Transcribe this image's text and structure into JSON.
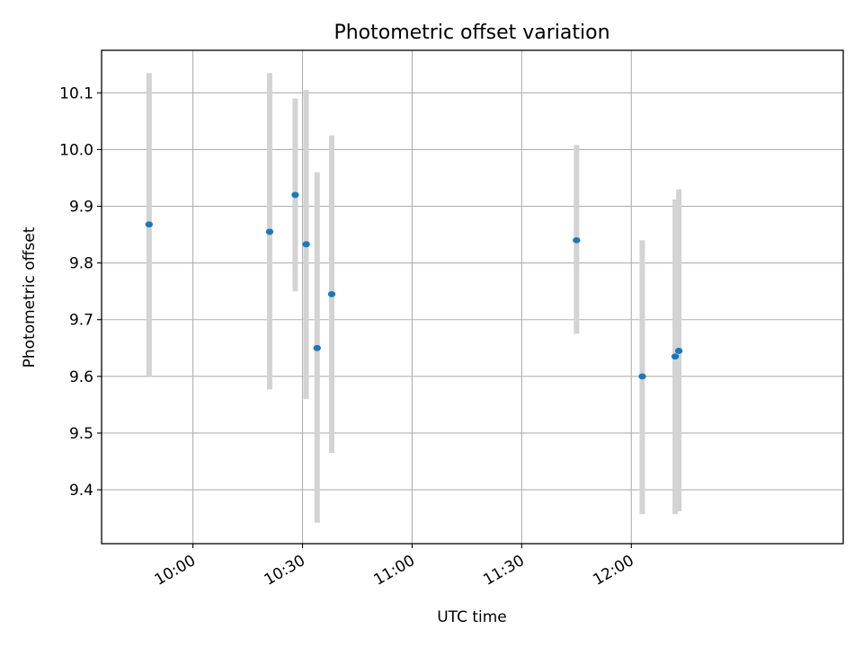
{
  "chart_data": {
    "type": "scatter",
    "title": "Photometric offset variation",
    "xlabel": "UTC time",
    "ylabel": "Photometric offset",
    "xlim": [
      "09:35",
      "12:58"
    ],
    "ylim": [
      9.305,
      10.175
    ],
    "x_ticks": [
      "10:00",
      "10:30",
      "11:00",
      "11:30",
      "12:00"
    ],
    "y_ticks": [
      9.4,
      9.5,
      9.6,
      9.7,
      9.8,
      9.9,
      10.0,
      10.1
    ],
    "grid": true,
    "colors": {
      "point": "#1f77b4",
      "error_bar": "#d3d3d3",
      "grid": "#b0b0b0"
    },
    "series": [
      {
        "points": [
          {
            "x": "09:48",
            "y": 9.868,
            "lo": 9.6,
            "hi": 10.135
          },
          {
            "x": "10:21",
            "y": 9.855,
            "lo": 9.577,
            "hi": 10.135
          },
          {
            "x": "10:28",
            "y": 9.92,
            "lo": 9.75,
            "hi": 10.09
          },
          {
            "x": "10:31",
            "y": 9.833,
            "lo": 9.56,
            "hi": 10.105
          },
          {
            "x": "10:34",
            "y": 9.65,
            "lo": 9.342,
            "hi": 9.96
          },
          {
            "x": "10:38",
            "y": 9.745,
            "lo": 9.465,
            "hi": 10.025
          },
          {
            "x": "11:45",
            "y": 9.84,
            "lo": 9.675,
            "hi": 10.008
          },
          {
            "x": "12:03",
            "y": 9.6,
            "lo": 9.357,
            "hi": 9.84
          },
          {
            "x": "12:12",
            "y": 9.635,
            "lo": 9.357,
            "hi": 9.912
          },
          {
            "x": "12:13",
            "y": 9.645,
            "lo": 9.362,
            "hi": 9.93
          }
        ]
      }
    ]
  }
}
